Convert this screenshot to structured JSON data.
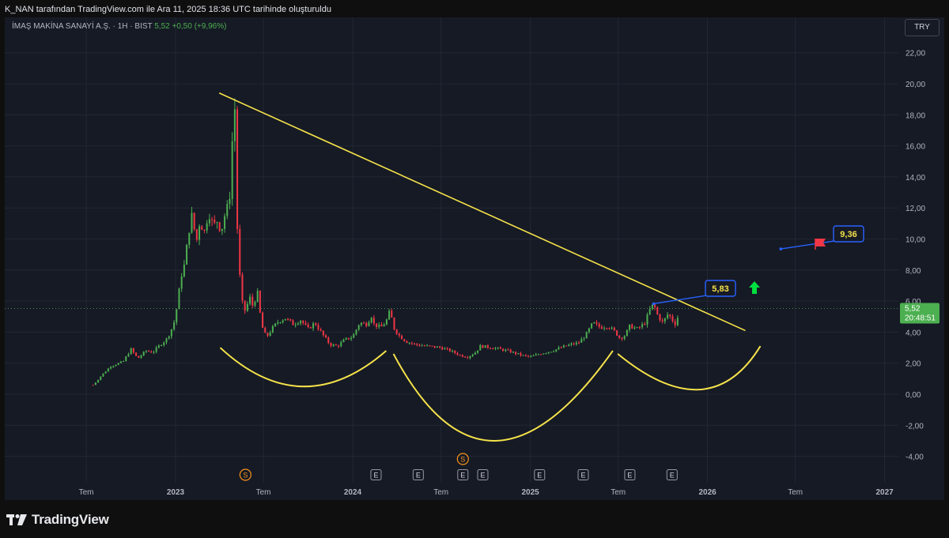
{
  "header": {
    "attribution": "K_NAN tarafından TradingView.com ile Ara 11, 2025 18:36 UTC tarihinde oluşturuldu"
  },
  "symbol": {
    "name": "İMAŞ MAKİNA SANAYİ A.Ş. · 1H · BIST",
    "last": "5,52",
    "change": "+0,50 (+9,96%)"
  },
  "currency": "TRY",
  "price_badge": {
    "price": "5,52",
    "countdown": "20:48:51"
  },
  "callouts": {
    "label_a": "5,83",
    "label_b": "9,36"
  },
  "event_markers": [
    "S",
    "S",
    "E",
    "E",
    "E",
    "E",
    "E",
    "E",
    "E",
    "E"
  ],
  "brand": "TradingView",
  "colors": {
    "background": "#161a25",
    "up": "#4caf50",
    "down": "#f23645",
    "trendline": "#f5e24a",
    "callout": "#2962ff",
    "price_badge": "#4caf50"
  },
  "icons": [
    "tradingview-logo-icon",
    "red-flag-icon",
    "green-up-arrow-icon"
  ],
  "chart_data": {
    "type": "candlestick",
    "y_axis": {
      "ticks": [
        "22,00",
        "20,00",
        "18,00",
        "16,00",
        "14,00",
        "12,00",
        "10,00",
        "8,00",
        "6,00",
        "4,00",
        "2,00",
        "0,00",
        "-2,00",
        "-4,00"
      ],
      "range": [
        -5.5,
        23.5
      ],
      "position": "right"
    },
    "x_axis": {
      "ticks": [
        "Tem",
        "2023",
        "Tem",
        "2024",
        "Tem",
        "2025",
        "Tem",
        "2026",
        "Tem",
        "2027"
      ],
      "range": [
        "2022-04",
        "2027-02"
      ]
    },
    "grid": true,
    "last_price": 5.52,
    "price_path": [
      [
        "2022-07-15",
        0.6
      ],
      [
        "2022-08-01",
        1.2
      ],
      [
        "2022-08-20",
        1.8
      ],
      [
        "2022-09-15",
        2.1
      ],
      [
        "2022-10-01",
        2.9
      ],
      [
        "2022-10-15",
        2.3
      ],
      [
        "2022-11-01",
        2.8
      ],
      [
        "2022-11-15",
        2.7
      ],
      [
        "2022-12-01",
        3.2
      ],
      [
        "2022-12-15",
        3.6
      ],
      [
        "2022-12-28",
        4.5
      ],
      [
        "2023-01-05",
        5.8
      ],
      [
        "2023-01-12",
        7.6
      ],
      [
        "2023-01-20",
        8.4
      ],
      [
        "2023-01-28",
        10.5
      ],
      [
        "2023-02-05",
        11.7
      ],
      [
        "2023-02-12",
        9.6
      ],
      [
        "2023-02-20",
        11.2
      ],
      [
        "2023-03-01",
        10.4
      ],
      [
        "2023-03-10",
        11.8
      ],
      [
        "2023-03-20",
        10.8
      ],
      [
        "2023-03-28",
        11.2
      ],
      [
        "2023-04-05",
        10.5
      ],
      [
        "2023-04-12",
        11.5
      ],
      [
        "2023-04-20",
        12.2
      ],
      [
        "2023-04-25",
        13.5
      ],
      [
        "2023-04-29",
        17.5
      ],
      [
        "2023-05-03",
        18.4
      ],
      [
        "2023-05-07",
        11.5
      ],
      [
        "2023-05-12",
        8.2
      ],
      [
        "2023-05-17",
        6.0
      ],
      [
        "2023-05-25",
        5.3
      ],
      [
        "2023-06-02",
        6.3
      ],
      [
        "2023-06-10",
        5.6
      ],
      [
        "2023-06-18",
        6.7
      ],
      [
        "2023-06-25",
        5.0
      ],
      [
        "2023-07-01",
        4.0
      ],
      [
        "2023-07-08",
        3.7
      ],
      [
        "2023-07-18",
        4.2
      ],
      [
        "2023-08-01",
        4.7
      ],
      [
        "2023-08-15",
        4.9
      ],
      [
        "2023-09-01",
        4.5
      ],
      [
        "2023-09-15",
        4.8
      ],
      [
        "2023-10-01",
        4.2
      ],
      [
        "2023-10-15",
        4.6
      ],
      [
        "2023-11-01",
        3.8
      ],
      [
        "2023-11-15",
        3.2
      ],
      [
        "2023-12-01",
        3.1
      ],
      [
        "2023-12-15",
        3.5
      ],
      [
        "2024-01-01",
        3.7
      ],
      [
        "2024-01-15",
        4.6
      ],
      [
        "2024-02-01",
        4.5
      ],
      [
        "2024-02-07",
        5.2
      ],
      [
        "2024-02-14",
        4.5
      ],
      [
        "2024-02-28",
        4.3
      ],
      [
        "2024-03-10",
        4.7
      ],
      [
        "2024-03-18",
        5.4
      ],
      [
        "2024-03-25",
        4.3
      ],
      [
        "2024-04-05",
        3.8
      ],
      [
        "2024-04-20",
        3.4
      ],
      [
        "2024-05-10",
        3.2
      ],
      [
        "2024-06-01",
        3.1
      ],
      [
        "2024-07-01",
        3.0
      ],
      [
        "2024-07-20",
        2.8
      ],
      [
        "2024-08-10",
        2.5
      ],
      [
        "2024-08-25",
        2.4
      ],
      [
        "2024-09-10",
        2.7
      ],
      [
        "2024-09-20",
        3.1
      ],
      [
        "2024-10-15",
        3.0
      ],
      [
        "2024-11-15",
        2.8
      ],
      [
        "2024-12-15",
        2.5
      ],
      [
        "2025-01-01",
        2.4
      ],
      [
        "2025-01-20",
        2.6
      ],
      [
        "2025-02-15",
        2.8
      ],
      [
        "2025-03-05",
        3.0
      ],
      [
        "2025-03-25",
        3.2
      ],
      [
        "2025-04-10",
        3.3
      ],
      [
        "2025-04-25",
        3.8
      ],
      [
        "2025-05-10",
        4.6
      ],
      [
        "2025-05-25",
        4.3
      ],
      [
        "2025-06-10",
        4.4
      ],
      [
        "2025-06-25",
        4.0
      ],
      [
        "2025-07-05",
        3.6
      ],
      [
        "2025-07-15",
        3.8
      ],
      [
        "2025-07-25",
        4.4
      ],
      [
        "2025-08-10",
        4.2
      ],
      [
        "2025-08-25",
        4.6
      ],
      [
        "2025-09-05",
        5.5
      ],
      [
        "2025-09-12",
        5.8
      ],
      [
        "2025-09-20",
        5.1
      ],
      [
        "2025-10-01",
        4.6
      ],
      [
        "2025-10-12",
        5.2
      ],
      [
        "2025-10-20",
        4.8
      ],
      [
        "2025-10-28",
        4.5
      ],
      [
        "2025-11-05",
        5.52
      ]
    ],
    "trendline": [
      [
        "2023-04-01",
        19.4
      ],
      [
        "2026-03-20",
        4.1
      ]
    ],
    "arcs": [
      [
        [
          "2023-04-03",
          3.0
        ],
        [
          "2023-09-20",
          0.5
        ],
        [
          "2024-03-10",
          2.8
        ]
      ],
      [
        [
          "2024-03-25",
          2.6
        ],
        [
          "2024-10-20",
          -3.0
        ],
        [
          "2025-06-20",
          2.8
        ]
      ],
      [
        [
          "2025-06-30",
          2.6
        ],
        [
          "2025-12-15",
          0.3
        ],
        [
          "2026-04-20",
          3.1
        ]
      ]
    ],
    "annotation_points": [
      {
        "label": "5,83",
        "date": "2025-09-12",
        "value": 5.83
      },
      {
        "label": "9,36",
        "date": "2026-06-01",
        "value": 9.36
      }
    ]
  }
}
